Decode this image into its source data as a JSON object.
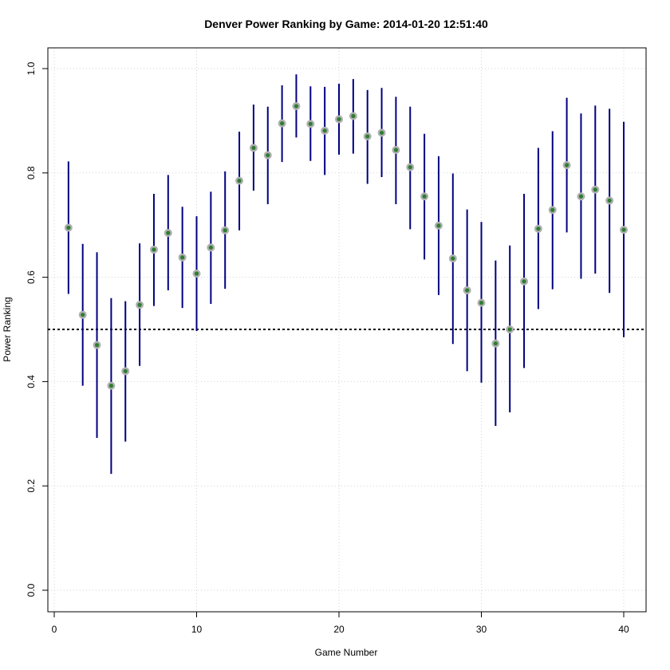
{
  "chart_data": {
    "type": "scatter",
    "title": "Denver Power Ranking by Game: 2014-01-20 12:51:40",
    "xlabel": "Game Number",
    "ylabel": "Power Ranking",
    "xlim": [
      0,
      41
    ],
    "ylim": [
      0,
      1
    ],
    "x_ticks": [
      0,
      10,
      20,
      30,
      40
    ],
    "y_ticks": [
      0.0,
      0.2,
      0.4,
      0.6,
      0.8,
      1.0
    ],
    "x_tick_labels": [
      "0",
      "10",
      "20",
      "30",
      "40"
    ],
    "y_tick_labels": [
      "0.0",
      "0.2",
      "0.4",
      "0.6",
      "0.8",
      "1.0"
    ],
    "grid": true,
    "reference_line": 0.5,
    "colors": {
      "interval": "#000080",
      "point_outer": "#b0b0b0",
      "point_inner": "#2e7d32",
      "grid": "#d3d3d3",
      "reference": "#000000"
    },
    "x": [
      1,
      2,
      3,
      4,
      5,
      6,
      7,
      8,
      9,
      10,
      11,
      12,
      13,
      14,
      15,
      16,
      17,
      18,
      19,
      20,
      21,
      22,
      23,
      24,
      25,
      26,
      27,
      28,
      29,
      30,
      31,
      32,
      33,
      34,
      35,
      36,
      37,
      38,
      39,
      40
    ],
    "values": [
      0.695,
      0.528,
      0.47,
      0.392,
      0.42,
      0.547,
      0.653,
      0.685,
      0.638,
      0.607,
      0.657,
      0.69,
      0.785,
      0.848,
      0.834,
      0.895,
      0.928,
      0.894,
      0.881,
      0.903,
      0.909,
      0.87,
      0.877,
      0.844,
      0.811,
      0.755,
      0.699,
      0.636,
      0.575,
      0.551,
      0.473,
      0.5,
      0.592,
      0.693,
      0.729,
      0.815,
      0.755,
      0.768,
      0.747,
      0.691
    ],
    "lower": [
      0.568,
      0.392,
      0.292,
      0.223,
      0.285,
      0.43,
      0.545,
      0.575,
      0.541,
      0.497,
      0.549,
      0.578,
      0.69,
      0.766,
      0.74,
      0.821,
      0.868,
      0.823,
      0.796,
      0.835,
      0.837,
      0.779,
      0.792,
      0.74,
      0.692,
      0.634,
      0.566,
      0.472,
      0.42,
      0.398,
      0.315,
      0.341,
      0.426,
      0.539,
      0.577,
      0.686,
      0.597,
      0.607,
      0.57,
      0.485
    ],
    "upper": [
      0.822,
      0.664,
      0.648,
      0.56,
      0.554,
      0.665,
      0.76,
      0.796,
      0.735,
      0.717,
      0.764,
      0.803,
      0.879,
      0.931,
      0.927,
      0.968,
      0.989,
      0.966,
      0.965,
      0.971,
      0.98,
      0.959,
      0.963,
      0.946,
      0.927,
      0.875,
      0.832,
      0.799,
      0.73,
      0.706,
      0.632,
      0.661,
      0.76,
      0.848,
      0.88,
      0.944,
      0.914,
      0.929,
      0.923,
      0.898
    ]
  }
}
